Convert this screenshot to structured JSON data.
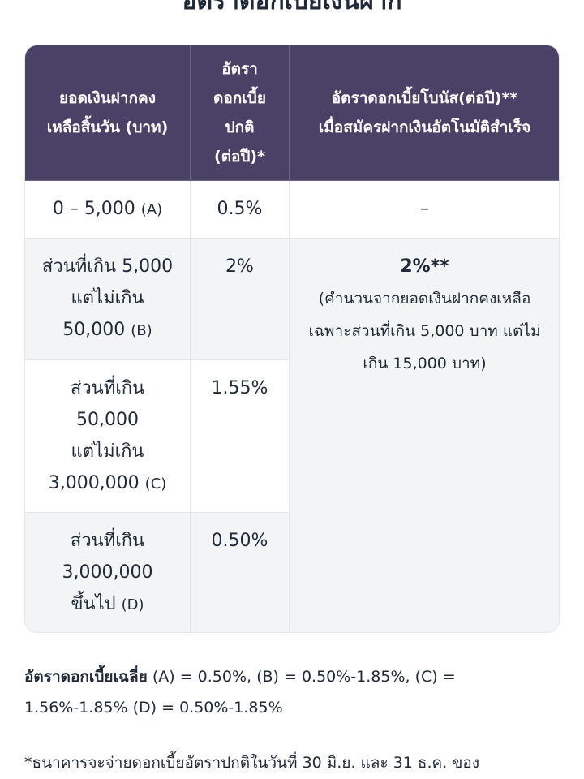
{
  "title": "อัตราดอกเบี้ยเงินฝาก",
  "table": {
    "header": [
      [
        "ยอดเงินฝากคง",
        "เหลือสิ้นวัน (บาท)"
      ],
      [
        "อัตรา",
        "ดอกเบี้ย",
        "ปกติ",
        "(ต่อปี)*"
      ],
      [
        "อัตราดอกเบี้ยโบนัส(ต่อปี)**",
        "เมื่อสมัครฝากเงินอัตโนมัติสำเร็จ"
      ]
    ],
    "rows": [
      {
        "tier": {
          "lines": [
            "0 – 5,000"
          ],
          "tag": "(A)"
        },
        "rate": "0.5%",
        "bonus": "–"
      },
      {
        "tier": {
          "lines": [
            "ส่วนที่เกิน 5,000",
            "แต่ไม่เกิน",
            "50,000"
          ],
          "tag": "(B)"
        },
        "rate": "2%",
        "bonus": {
          "value": "2%**",
          "note": [
            "(คำนวนจากยอดเงินฝากคงเหลือ",
            "เฉพาะส่วนที่เกิน 5,000 บาท แต่ไม่",
            "เกิน 15,000 บาท)"
          ]
        }
      },
      {
        "tier": {
          "lines": [
            "ส่วนที่เกิน",
            "50,000",
            "แต่ไม่เกิน",
            "3,000,000"
          ],
          "tag": "(C)"
        },
        "rate": "1.55%"
      },
      {
        "tier": {
          "lines": [
            "ส่วนที่เกิน",
            "3,000,000",
            "ขึ้นไป"
          ],
          "tag": "(D)"
        },
        "rate": "0.50%"
      }
    ]
  },
  "average": {
    "label": "อัตราดอกเบี้ยเฉลี่ย",
    "text": " (A) = 0.50%, (B) = 0.50%-1.85%, (C) = 1.56%-1.85% (D) = 0.50%-1.85%"
  },
  "footnote": "*ธนาคารจะจ่ายดอกเบี้ยอัตราปกติในวันที่ 30 มิ.ย. และ 31 ธ.ค. ของ"
}
